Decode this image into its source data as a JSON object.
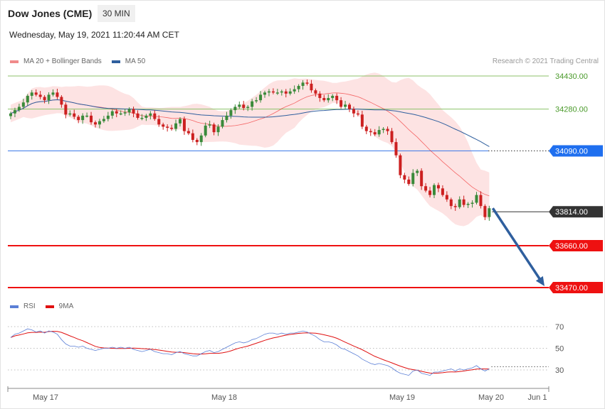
{
  "header": {
    "instrument": "Dow Jones (CME)",
    "timeframe": "30 MIN",
    "datetime": "Wednesday, May 19, 2021 11:20:44 AM CET"
  },
  "legend_main": [
    {
      "label": "MA 20 + Bollinger Bands",
      "color": "#f08a8a"
    },
    {
      "label": "MA 50",
      "color": "#2f5f9e"
    }
  ],
  "legend_rsi": [
    {
      "label": "RSI",
      "color": "#5b7fd6"
    },
    {
      "label": "9MA",
      "color": "#e01010"
    }
  ],
  "credit": "Research © 2021 Trading Central",
  "colors": {
    "up": "#3a8a3a",
    "down": "#cc2020",
    "bollinger_fill": "#fde3e3",
    "resistance": "#8cc26a",
    "pivot": "#3d7ae8",
    "support": "#ee1111",
    "current": "#333333",
    "arrow": "#2f5f9e"
  },
  "chart_data": [
    {
      "type": "candlestick",
      "ylim": [
        33420,
        34560
      ],
      "x_ticks": [
        "May 17",
        "May 18",
        "May 19",
        "May 20",
        "Jun 1"
      ],
      "levels": [
        {
          "label": "34430.00",
          "value": 34430,
          "kind": "resistance"
        },
        {
          "label": "34280.00",
          "value": 34280,
          "kind": "resistance"
        },
        {
          "label": "34090.00",
          "value": 34090,
          "kind": "pivot"
        },
        {
          "label": "33814.00",
          "value": 33814,
          "kind": "current"
        },
        {
          "label": "33660.00",
          "value": 33660,
          "kind": "support"
        },
        {
          "label": "33470.00",
          "value": 33470,
          "kind": "support"
        }
      ],
      "close": [
        34260,
        34275,
        34290,
        34310,
        34340,
        34355,
        34345,
        34335,
        34320,
        34345,
        34355,
        34335,
        34300,
        34255,
        34260,
        34245,
        34230,
        34250,
        34250,
        34220,
        34210,
        34225,
        34235,
        34250,
        34270,
        34260,
        34260,
        34265,
        34280,
        34260,
        34240,
        34240,
        34250,
        34260,
        34235,
        34210,
        34200,
        34195,
        34190,
        34215,
        34235,
        34180,
        34170,
        34140,
        34130,
        34160,
        34205,
        34210,
        34175,
        34200,
        34230,
        34250,
        34275,
        34290,
        34300,
        34285,
        34290,
        34315,
        34320,
        34345,
        34355,
        34360,
        34355,
        34355,
        34360,
        34350,
        34360,
        34370,
        34385,
        34400,
        34395,
        34365,
        34350,
        34330,
        34320,
        34330,
        34340,
        34320,
        34290,
        34300,
        34280,
        34260,
        34255,
        34200,
        34180,
        34175,
        34165,
        34185,
        34190,
        34180,
        34130,
        34070,
        33980,
        33960,
        33940,
        33990,
        34000,
        33930,
        33910,
        33890,
        33935,
        33920,
        33890,
        33870,
        33840,
        33835,
        33870,
        33845,
        33850,
        33855,
        33890,
        33840,
        33790,
        33830
      ],
      "rsi": [
        60,
        63,
        64,
        66,
        68,
        67,
        65,
        66,
        64,
        66,
        65,
        63,
        58,
        54,
        52,
        52,
        51,
        52,
        50,
        49,
        48,
        49,
        50,
        50,
        51,
        50,
        51,
        50,
        51,
        49,
        48,
        47,
        48,
        49,
        47,
        46,
        45,
        45,
        44,
        46,
        47,
        45,
        44,
        43,
        43,
        45,
        47,
        48,
        46,
        47,
        49,
        51,
        53,
        55,
        56,
        55,
        56,
        58,
        59,
        61,
        63,
        64,
        64,
        63,
        64,
        63,
        64,
        64,
        65,
        66,
        65,
        63,
        61,
        58,
        56,
        56,
        55,
        53,
        50,
        49,
        47,
        45,
        43,
        40,
        38,
        36,
        35,
        36,
        35,
        34,
        32,
        29,
        27,
        26,
        25,
        29,
        30,
        27,
        26,
        25,
        28,
        28,
        29,
        30,
        31,
        29,
        31,
        30,
        31,
        32,
        34,
        31,
        29,
        31
      ],
      "rsi_levels": [
        70,
        50,
        30
      ],
      "rsi_ylim": [
        20,
        78
      ]
    }
  ]
}
